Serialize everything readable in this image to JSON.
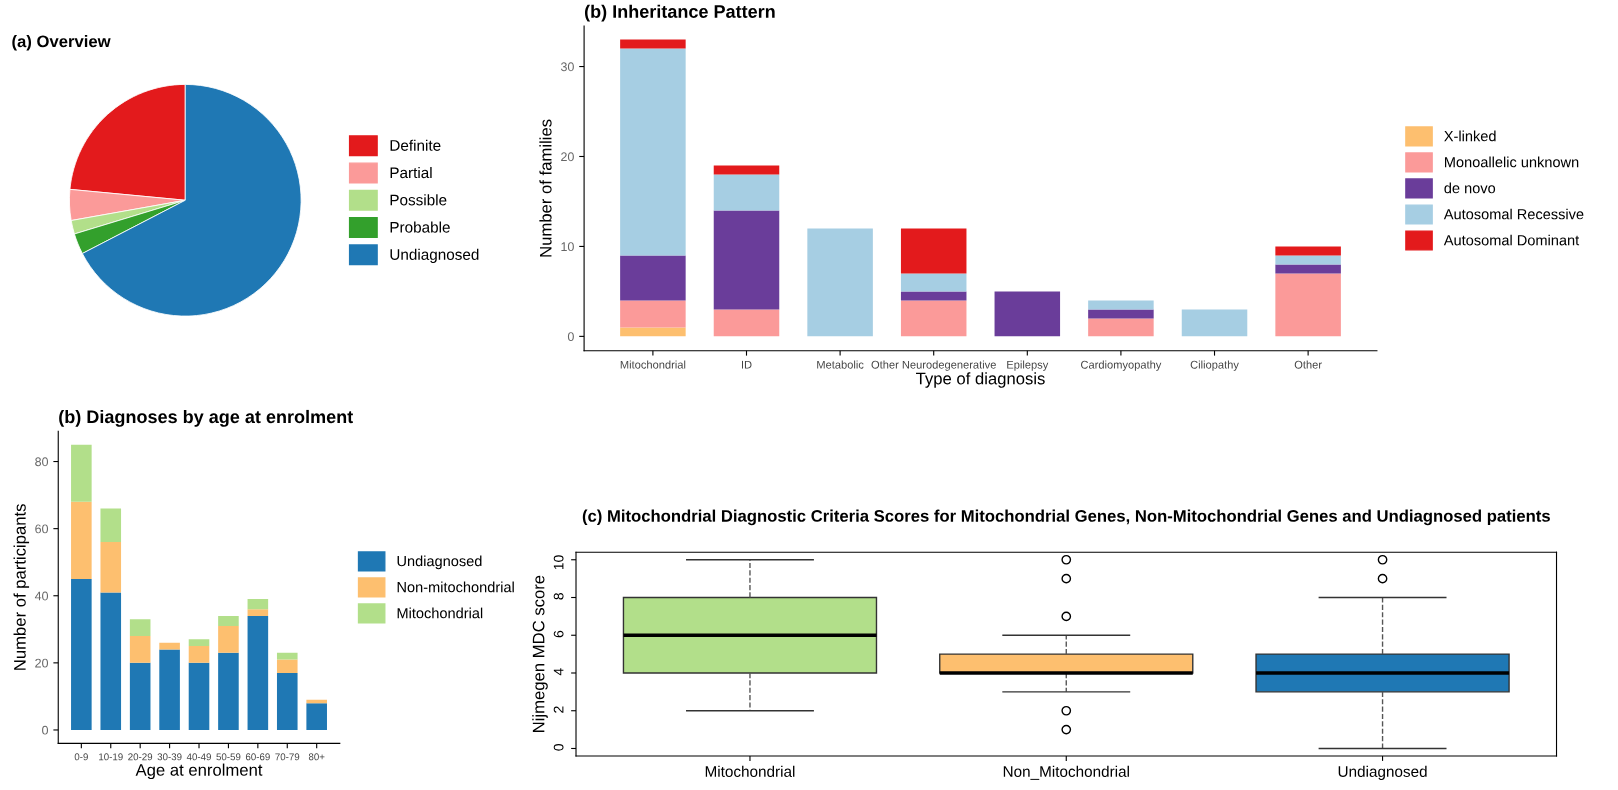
{
  "chart_data": [
    {
      "type": "pie",
      "title": "(a) Overview",
      "categories": [
        "Definite",
        "Partial",
        "Possible",
        "Probable",
        "Undiagnosed"
      ],
      "values": [
        23.5,
        4.3,
        1.9,
        2.9,
        67.4
      ],
      "colors": [
        "#e31a1c",
        "#fb9a99",
        "#b2df8a",
        "#33a02c",
        "#1f78b4"
      ],
      "legend": "right"
    },
    {
      "type": "bar",
      "title": "(b) Inheritance Pattern",
      "xlabel": "Type of diagnosis",
      "ylabel": "Number of families",
      "categories": [
        "Mitochondrial",
        "ID",
        "Metabolic",
        "Other Neurodegenerative",
        "Epilepsy",
        "Cardiomyopathy",
        "Ciliopathy",
        "Other"
      ],
      "stacked": true,
      "legend": "right",
      "grid": false,
      "ylim": [
        -1.6,
        34.5
      ],
      "yticks": [
        0,
        10,
        20,
        30
      ],
      "series": [
        {
          "name": "X-linked",
          "color": "#fdbf6f",
          "values": [
            1,
            0,
            0,
            0,
            0,
            0,
            0,
            0
          ]
        },
        {
          "name": "Monoallelic unknown",
          "color": "#fb9a99",
          "values": [
            3,
            3,
            0,
            4,
            0,
            2,
            0,
            7
          ]
        },
        {
          "name": "de novo",
          "color": "#6a3d9a",
          "values": [
            5,
            11,
            0,
            1,
            5,
            1,
            0,
            1
          ]
        },
        {
          "name": "Autosomal Recessive",
          "color": "#a6cee3",
          "values": [
            23,
            4,
            12,
            2,
            0,
            1,
            3,
            1
          ]
        },
        {
          "name": "Autosomal Dominant",
          "color": "#e31a1c",
          "values": [
            1,
            1,
            0,
            5,
            0,
            0,
            0,
            1
          ]
        }
      ]
    },
    {
      "type": "bar",
      "title": "(b) Diagnoses by age at enrolment",
      "xlabel": "Age at enrolment",
      "ylabel": "Number of participants",
      "categories": [
        "0-9",
        "10-19",
        "20-29",
        "30-39",
        "40-49",
        "50-59",
        "60-69",
        "70-79",
        "80+"
      ],
      "stacked": true,
      "legend": "right",
      "grid": false,
      "ylim": [
        -4,
        89
      ],
      "yticks": [
        0,
        20,
        40,
        60,
        80
      ],
      "series": [
        {
          "name": "Undiagnosed",
          "color": "#1f78b4",
          "values": [
            45,
            41,
            20,
            24,
            20,
            23,
            34,
            17,
            8
          ]
        },
        {
          "name": "Non-mitochondrial",
          "color": "#fdbf6f",
          "values": [
            23,
            15,
            8,
            2,
            5,
            8,
            2,
            4,
            1
          ]
        },
        {
          "name": "Mitochondrial",
          "color": "#b2df8a",
          "values": [
            17,
            10,
            5,
            0,
            2,
            3,
            3,
            2,
            0
          ]
        }
      ]
    },
    {
      "type": "box",
      "title": "(c) Mitochondrial Diagnostic Criteria Scores for Mitochondrial Genes, Non-Mitochondrial Genes and Undiagnosed patients",
      "ylabel": "Nijmegen MDC score",
      "categories": [
        "Mitochondrial",
        "Non_Mitochondrial",
        "Undiagnosed"
      ],
      "colors": [
        "#b2df8a",
        "#fdbf6f",
        "#1f78b4"
      ],
      "ylim": [
        -0.4,
        10.4
      ],
      "yticks": [
        0,
        2,
        4,
        6,
        8,
        10
      ],
      "line_style": "dashed",
      "grid": false,
      "boxes": [
        {
          "low": 2,
          "q1": 4,
          "median": 6,
          "q3": 8,
          "high": 10
        },
        {
          "low": 3,
          "q1": 4,
          "median": 4,
          "q3": 5,
          "high": 6,
          "outliers": [
            10,
            9,
            7,
            2,
            1
          ]
        },
        {
          "low": 0,
          "q1": 3,
          "median": 4,
          "q3": 5,
          "high": 8,
          "outliers": [
            10,
            9
          ]
        }
      ]
    }
  ]
}
